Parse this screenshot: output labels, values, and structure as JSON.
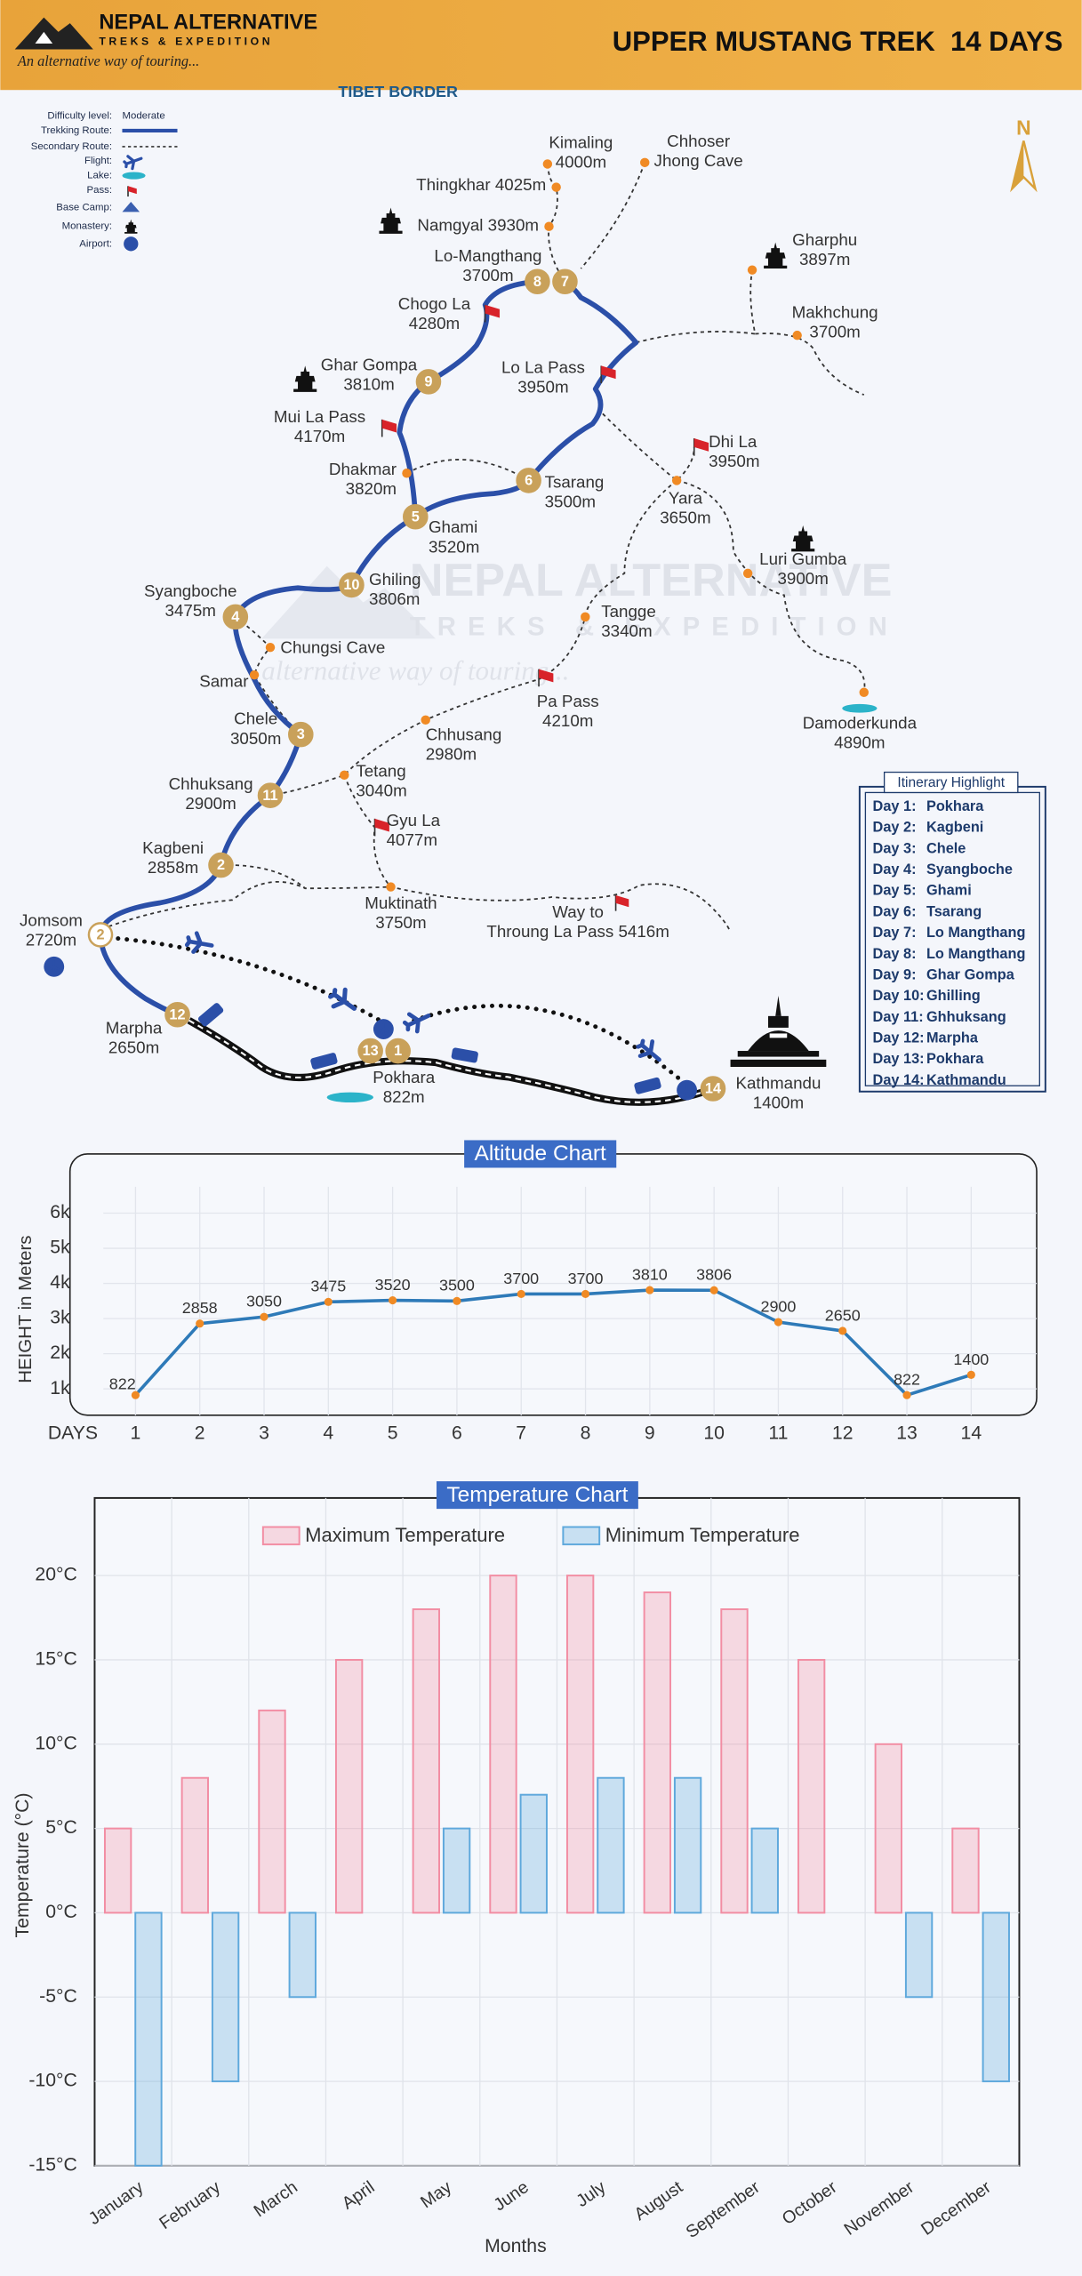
{
  "header": {
    "brand": "NEPAL ALTERNATIVE",
    "brand_sub": "TREKS & EXPEDITION",
    "tagline": "An alternative way of touring...",
    "trek_title": "UPPER MUSTANG TREK  14 DAYS"
  },
  "map": {
    "border_label": "TIBET BORDER",
    "north": "N",
    "watermark": [
      "NEPAL ALTERNATIVE",
      "TREKS & EXPEDITION",
      "alternative way of touring..."
    ],
    "legend": [
      {
        "label": "Difficulty level:",
        "value": "Moderate"
      },
      {
        "label": "Trekking Route:"
      },
      {
        "label": "Secondary Route:"
      },
      {
        "label": "Flight:"
      },
      {
        "label": "Lake:"
      },
      {
        "label": "Pass:"
      },
      {
        "label": "Base Camp:"
      },
      {
        "label": "Monastery:"
      },
      {
        "label": "Airport:"
      }
    ],
    "places": [
      {
        "lines": [
          "Kimaling",
          "4000m"
        ]
      },
      {
        "lines": [
          "Chhoser",
          "Jhong Cave"
        ]
      },
      {
        "lines": [
          "Thingkhar 4025m"
        ]
      },
      {
        "lines": [
          "Namgyal 3930m"
        ]
      },
      {
        "lines": [
          "Lo-Mangthang",
          "3700m"
        ]
      },
      {
        "lines": [
          "Gharphu",
          "3897m"
        ]
      },
      {
        "lines": [
          "Makhchung",
          "3700m"
        ]
      },
      {
        "lines": [
          "Chogo La",
          "4280m"
        ]
      },
      {
        "lines": [
          "Lo La Pass",
          "3950m"
        ]
      },
      {
        "lines": [
          "Ghar Gompa",
          "3810m"
        ]
      },
      {
        "lines": [
          "Mui La Pass",
          "4170m"
        ]
      },
      {
        "lines": [
          "Dhi La",
          "3950m"
        ]
      },
      {
        "lines": [
          "Dhakmar",
          "3820m"
        ]
      },
      {
        "lines": [
          "Tsarang",
          "3500m"
        ]
      },
      {
        "lines": [
          "Yara",
          "3650m"
        ]
      },
      {
        "lines": [
          "Ghami",
          "3520m"
        ]
      },
      {
        "lines": [
          "Luri Gumba",
          "3900m"
        ]
      },
      {
        "lines": [
          "Ghiling",
          "3806m"
        ]
      },
      {
        "lines": [
          "Syangboche",
          "3475m"
        ]
      },
      {
        "lines": [
          "Tangge",
          "3340m"
        ]
      },
      {
        "lines": [
          "Chungsi Cave"
        ]
      },
      {
        "lines": [
          "Samar"
        ]
      },
      {
        "lines": [
          "Pa Pass",
          "4210m"
        ]
      },
      {
        "lines": [
          "Chele",
          "3050m"
        ]
      },
      {
        "lines": [
          "Damoderkunda",
          "4890m"
        ]
      },
      {
        "lines": [
          "Chhusang",
          "2980m"
        ]
      },
      {
        "lines": [
          "Chhuksang",
          "2900m"
        ]
      },
      {
        "lines": [
          "Tetang",
          "3040m"
        ]
      },
      {
        "lines": [
          "Gyu La",
          "4077m"
        ]
      },
      {
        "lines": [
          "Kagbeni",
          "2858m"
        ]
      },
      {
        "lines": [
          "Muktinath",
          "3750m"
        ]
      },
      {
        "lines": [
          "Way to",
          "Throung La Pass 5416m"
        ]
      },
      {
        "lines": [
          "Jomsom",
          "2720m"
        ]
      },
      {
        "lines": [
          "Marpha",
          "2650m"
        ]
      },
      {
        "lines": [
          "Pokhara",
          "822m"
        ]
      },
      {
        "lines": [
          "Kathmandu",
          "1400m"
        ]
      }
    ],
    "day_markers": [
      "8",
      "7",
      "9",
      "6",
      "5",
      "10",
      "4",
      "3",
      "11",
      "2",
      "2",
      "12",
      "13",
      "1",
      "14"
    ]
  },
  "itinerary": {
    "title": "Itinerary Highlight",
    "rows": [
      [
        "Day 1:",
        "Pokhara"
      ],
      [
        "Day 2:",
        "Kagbeni"
      ],
      [
        "Day 3:",
        "Chele"
      ],
      [
        "Day 4:",
        "Syangboche"
      ],
      [
        "Day 5:",
        "Ghami"
      ],
      [
        "Day 6:",
        "Tsarang"
      ],
      [
        "Day 7:",
        "Lo Mangthang"
      ],
      [
        "Day 8:",
        "Lo Mangthang"
      ],
      [
        "Day 9:",
        "Ghar Gompa"
      ],
      [
        "Day 10:",
        "Ghilling"
      ],
      [
        "Day 11:",
        "Ghhuksang"
      ],
      [
        "Day 12:",
        "Marpha"
      ],
      [
        "Day 13:",
        "Pokhara"
      ],
      [
        "Day 14:",
        "Kathmandu"
      ]
    ]
  },
  "chart_data": [
    {
      "type": "line",
      "title": "Altitude Chart",
      "x_label": "DAYS",
      "y_label": "HEIGHT in Meters",
      "x": [
        1,
        2,
        3,
        4,
        5,
        6,
        7,
        8,
        9,
        10,
        11,
        12,
        13,
        14
      ],
      "values": [
        822,
        2858,
        3050,
        3475,
        3520,
        3500,
        3700,
        3700,
        3810,
        3806,
        2900,
        2650,
        822,
        1400
      ],
      "color": "#2e7ab8",
      "point_color": "#f08a24",
      "xlim": [
        0.5,
        14.5
      ],
      "xticks": [
        1,
        2,
        3,
        4,
        5,
        6,
        7,
        8,
        9,
        10,
        11,
        12,
        13,
        14
      ],
      "ylim": [
        250,
        6750
      ],
      "yticks": [
        {
          "value": 1000,
          "label": "1k"
        },
        {
          "value": 2000,
          "label": "2k"
        },
        {
          "value": 3000,
          "label": "3k"
        },
        {
          "value": 4000,
          "label": "4k"
        },
        {
          "value": 5000,
          "label": "5k"
        },
        {
          "value": 6000,
          "label": "6k"
        }
      ],
      "grid": true
    },
    {
      "type": "bar",
      "title": "Temperature Chart",
      "x_label": "Months",
      "y_label": "Temperature (°C)",
      "categories": [
        "January",
        "February",
        "March",
        "April",
        "May",
        "June",
        "July",
        "August",
        "September",
        "October",
        "November",
        "December"
      ],
      "series": [
        {
          "name": "Maximum Temperature",
          "color": "#f28da3",
          "values": [
            5,
            8,
            12,
            15,
            18,
            20,
            20,
            19,
            18,
            15,
            10,
            5
          ]
        },
        {
          "name": "Minimum Temperature",
          "color": "#5ea8dc",
          "values": [
            -15,
            -10,
            -5,
            0,
            5,
            7,
            8,
            8,
            5,
            0,
            -5,
            -10
          ]
        }
      ],
      "ylim": [
        -15,
        24.6
      ],
      "yticks": [
        {
          "value": -15,
          "label": "-15°C"
        },
        {
          "value": -10,
          "label": "-10°C"
        },
        {
          "value": -5,
          "label": "-5°C"
        },
        {
          "value": 0,
          "label": "0°C"
        },
        {
          "value": 5,
          "label": "5°C"
        },
        {
          "value": 10,
          "label": "10°C"
        },
        {
          "value": 15,
          "label": "15°C"
        },
        {
          "value": 20,
          "label": "20°C"
        }
      ],
      "grid": true,
      "legend": "top"
    }
  ]
}
